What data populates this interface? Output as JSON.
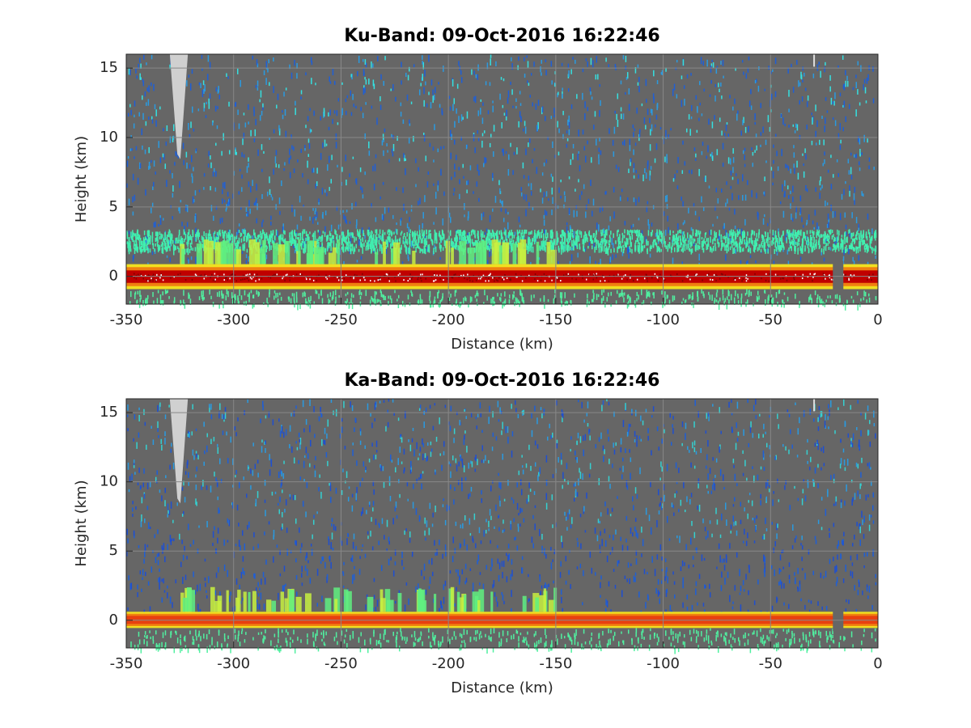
{
  "chart_data": [
    {
      "type": "heatmap",
      "title": "Ku-Band: 09-Oct-2016 16:22:46",
      "xlabel": "Distance (km)",
      "ylabel": "Height (km)",
      "xlim": [
        -350,
        0
      ],
      "xticks": [
        -350,
        -300,
        -250,
        -200,
        -150,
        -100,
        -50,
        0
      ],
      "ylim": [
        -2,
        16
      ],
      "yticks": [
        0,
        5,
        10,
        15
      ],
      "grid": true
    },
    {
      "type": "heatmap",
      "title": "Ka-Band: 09-Oct-2016 16:22:46",
      "xlabel": "Distance (km)",
      "ylabel": "Height (km)",
      "xlim": [
        -350,
        0
      ],
      "xticks": [
        -350,
        -300,
        -250,
        -200,
        -150,
        -100,
        -50,
        0
      ],
      "ylim": [
        -2,
        16
      ],
      "yticks": [
        0,
        5,
        10,
        15
      ],
      "grid": true
    }
  ]
}
